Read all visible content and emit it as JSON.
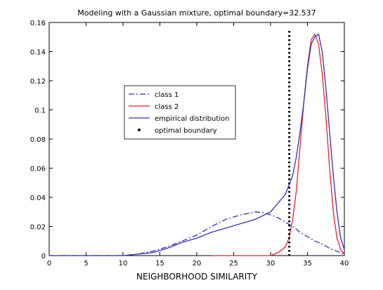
{
  "chart_data": {
    "type": "line",
    "title": "Modeling with a Gaussian mixture, optimal boundary=32.537",
    "xlabel": "NEIGHBORHOOD SIMILARITY",
    "ylabel": "",
    "xlim": [
      0,
      40
    ],
    "ylim": [
      0,
      0.16
    ],
    "xticks": [
      "0",
      "5",
      "10",
      "15",
      "20",
      "25",
      "30",
      "35",
      "40"
    ],
    "yticks": [
      "0",
      "0.02",
      "0.04",
      "0.06",
      "0.08",
      "0.1",
      "0.12",
      "0.14",
      "0.16"
    ],
    "grid": false,
    "legend_position": "center-left",
    "series": [
      {
        "name": "class 1",
        "style": "dash-dot",
        "color": "#3333b3",
        "x": [
          0,
          10,
          12,
          14,
          16,
          18,
          20,
          22,
          24,
          26,
          27,
          28,
          29,
          30,
          31,
          32,
          33,
          34,
          35,
          36,
          37,
          38,
          39,
          40
        ],
        "y": [
          0,
          0,
          0.001,
          0.003,
          0.006,
          0.01,
          0.014,
          0.02,
          0.025,
          0.028,
          0.029,
          0.03,
          0.0295,
          0.028,
          0.026,
          0.023,
          0.02,
          0.016,
          0.013,
          0.01,
          0.008,
          0.005,
          0.003,
          0.001
        ]
      },
      {
        "name": "class 2",
        "style": "solid",
        "color": "#e8202a",
        "x": [
          22,
          30,
          31,
          32,
          32.5,
          33,
          33.5,
          34,
          34.5,
          35,
          35.5,
          36,
          36.5,
          37,
          37.5,
          38,
          38.5,
          39,
          39.5,
          40
        ],
        "y": [
          0,
          0,
          0.002,
          0.006,
          0.012,
          0.025,
          0.045,
          0.075,
          0.105,
          0.13,
          0.148,
          0.152,
          0.145,
          0.125,
          0.095,
          0.06,
          0.03,
          0.012,
          0.004,
          0.001
        ]
      },
      {
        "name": "empirical distribution",
        "style": "solid",
        "color": "#3333b3",
        "x": [
          0,
          10,
          12,
          14,
          16,
          18,
          20,
          22,
          24,
          26,
          28,
          30,
          31,
          32,
          33,
          33.5,
          34,
          34.5,
          35,
          35.5,
          36,
          36.5,
          37,
          37.5,
          38,
          38.5,
          39,
          39.5,
          40
        ],
        "y": [
          0,
          0,
          0.001,
          0.002,
          0.005,
          0.009,
          0.012,
          0.016,
          0.019,
          0.022,
          0.025,
          0.03,
          0.036,
          0.042,
          0.055,
          0.068,
          0.085,
          0.105,
          0.128,
          0.145,
          0.15,
          0.152,
          0.14,
          0.115,
          0.085,
          0.055,
          0.03,
          0.012,
          0.004
        ]
      }
    ],
    "vlines": [
      {
        "name": "optimal boundary",
        "x": 32.537,
        "style": "dotted",
        "color": "#000000"
      }
    ]
  }
}
